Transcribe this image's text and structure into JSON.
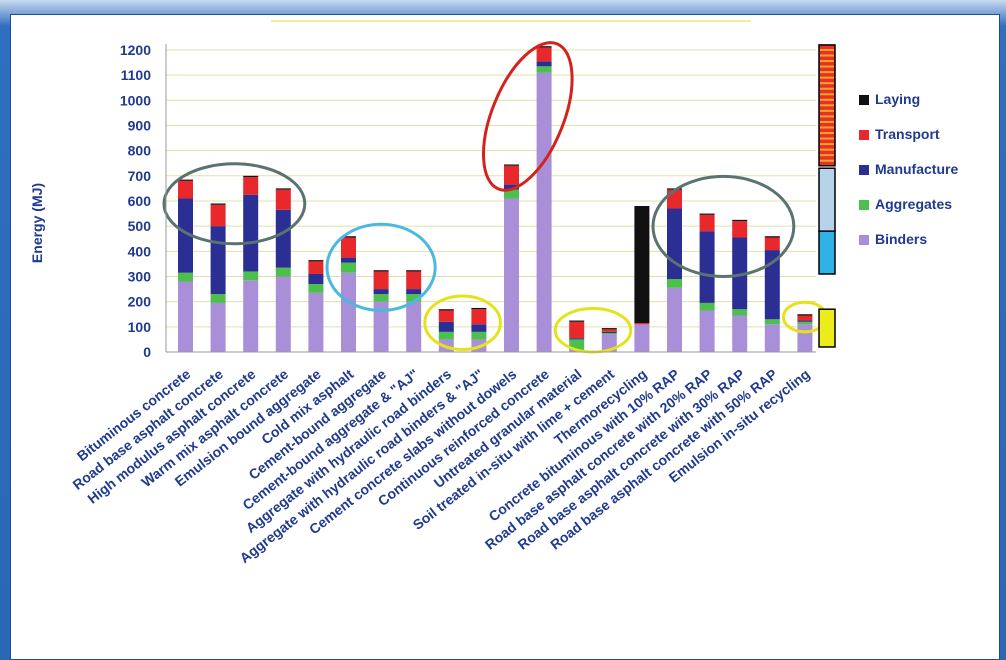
{
  "chart_data": {
    "type": "bar",
    "stacked": true,
    "title": "",
    "xlabel": "",
    "ylabel": "Energy (MJ)",
    "ylim": [
      0,
      1200
    ],
    "yticks": [
      0,
      100,
      200,
      300,
      400,
      500,
      600,
      700,
      800,
      900,
      1000,
      1100,
      1200
    ],
    "grid": true,
    "legend_position": "right",
    "categories": [
      "Bituminous concrete",
      "Road base asphalt concrete",
      "High modulus asphalt concrete",
      "Warm mix asphalt concrete",
      "Emulsion bound aggregate",
      "Cold mix asphalt",
      "Cement-bound aggregate",
      "Cement-bound aggregate & \"AJ\"",
      "Aggregate with hydraulic road binders",
      "Aggregate with hydraulic road binders & \"AJ\"",
      "Cement concrete slabs without dowels",
      "Continuous reinforced concrete",
      "Untreated granular material",
      "Soil treated in-situ with lime + cement",
      "Thermorecycling",
      "Concrete bituminous with 10% RAP",
      "Road base asphalt concrete with 20% RAP",
      "Road base asphalt concrete with 30% RAP",
      "Road base asphalt concrete with 50% RAP",
      "Emulsion in-situ recycling"
    ],
    "series": [
      {
        "name": "Binders",
        "color": "#a98fd8",
        "values": [
          280,
          195,
          285,
          300,
          235,
          315,
          200,
          200,
          50,
          50,
          610,
          1110,
          10,
          70,
          110,
          255,
          165,
          145,
          110,
          110
        ]
      },
      {
        "name": "Aggregates",
        "color": "#4cbf4c",
        "values": [
          35,
          35,
          35,
          35,
          35,
          40,
          30,
          30,
          30,
          30,
          35,
          25,
          40,
          5,
          0,
          35,
          30,
          25,
          20,
          10
        ]
      },
      {
        "name": "Manufacture",
        "color": "#2b2f94",
        "values": [
          295,
          270,
          305,
          230,
          40,
          20,
          20,
          20,
          40,
          30,
          20,
          20,
          5,
          5,
          0,
          280,
          285,
          285,
          275,
          5
        ]
      },
      {
        "name": "Transport",
        "color": "#e8282a",
        "values": [
          70,
          85,
          70,
          80,
          50,
          80,
          70,
          70,
          45,
          60,
          75,
          55,
          65,
          10,
          5,
          75,
          65,
          65,
          50,
          20
        ]
      },
      {
        "name": "Laying",
        "color": "#111111",
        "values": [
          5,
          5,
          5,
          5,
          5,
          5,
          5,
          5,
          5,
          5,
          5,
          5,
          5,
          5,
          465,
          5,
          5,
          5,
          5,
          5
        ]
      }
    ],
    "legend": [
      "Laying",
      "Transport",
      "Manufacture",
      "Aggregates",
      "Binders"
    ]
  },
  "highlights": [
    {
      "name": "group-asphalt-ellipse",
      "color": "#5a7370",
      "categories": [
        0,
        3
      ]
    },
    {
      "name": "group-cement-ellipse",
      "color": "#4ab8e0",
      "categories": [
        5,
        7
      ]
    },
    {
      "name": "group-hydraulic-ellipse",
      "color": "#e6e21a",
      "categories": [
        8,
        9
      ]
    },
    {
      "name": "group-concrete-ellipse",
      "color": "#d4231f",
      "categories": [
        10,
        11
      ]
    },
    {
      "name": "group-granular-ellipse",
      "color": "#e6e21a",
      "categories": [
        12,
        13
      ]
    },
    {
      "name": "group-rap-ellipse",
      "color": "#5a7370",
      "categories": [
        15,
        18
      ]
    },
    {
      "name": "group-insitu-ellipse",
      "color": "#e6e21a",
      "categories": [
        19,
        19
      ]
    }
  ],
  "side_scale": [
    {
      "name": "red-band",
      "color": "#e8302a",
      "from": 740,
      "to": 1220
    },
    {
      "name": "lightblue-band",
      "color": "#b7d3ea",
      "from": 480,
      "to": 730
    },
    {
      "name": "cyan-band",
      "color": "#2fb3e6",
      "from": 310,
      "to": 480
    },
    {
      "name": "yellow-band",
      "color": "#ecec1a",
      "from": 20,
      "to": 170
    }
  ]
}
